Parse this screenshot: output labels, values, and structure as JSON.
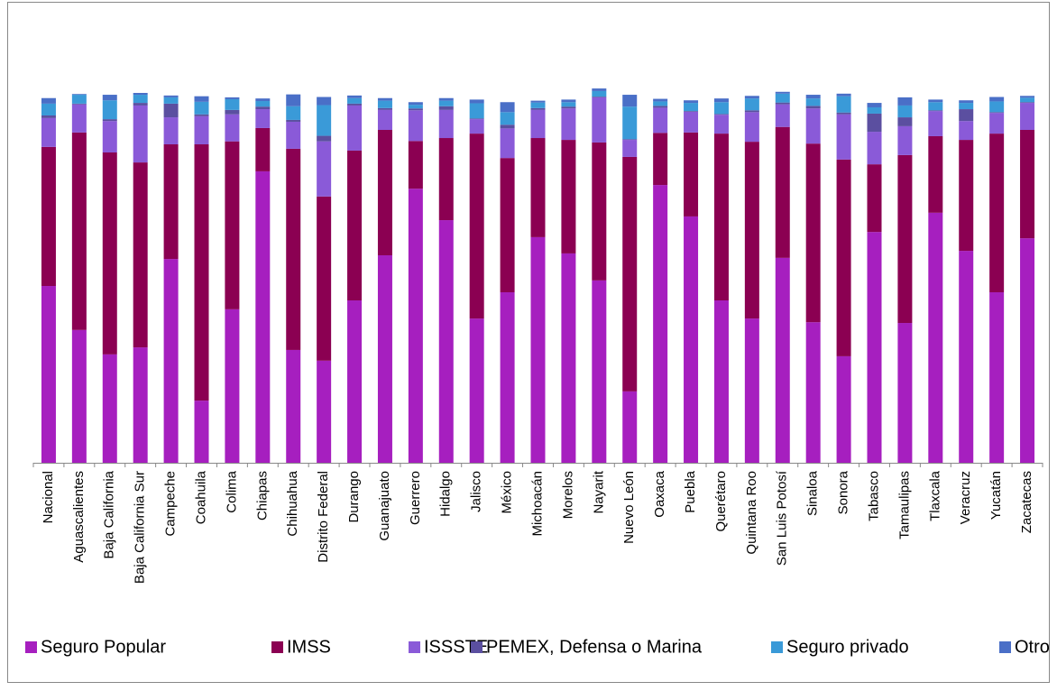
{
  "chart_data": {
    "type": "stacked_bar",
    "categories": [
      "Nacional",
      "Aguascalientes",
      "Baja California",
      "Baja California Sur",
      "Campeche",
      "Coahuila",
      "Colima",
      "Chiapas",
      "Chihuahua",
      "Distrito Federal",
      "Durango",
      "Guanajuato",
      "Guerrero",
      "Hidalgo",
      "Jalisco",
      "México",
      "Michoacán",
      "Morelos",
      "Nayarit",
      "Nuevo León",
      "Oaxaca",
      "Puebla",
      "Querétaro",
      "Quintana Roo",
      "San Luis Potosí",
      "Sinaloa",
      "Sonora",
      "Tabasco",
      "Tamaulipas",
      "Tlaxcala",
      "Veracruz",
      "Yucatán",
      "Zacatecas"
    ],
    "series": [
      {
        "name": "Seguro Popular",
        "color": "#a61fbf",
        "values": [
          47.8,
          35.9,
          29.3,
          31.2,
          55.1,
          16.8,
          41.5,
          78.8,
          30.5,
          27.6,
          43.9,
          56.1,
          74.1,
          65.6,
          39,
          46.1,
          61,
          56.6,
          49.3,
          19.3,
          75.1,
          66.6,
          43.9,
          39,
          55.4,
          38,
          28.8,
          62.4,
          37.8,
          67.6,
          57.3,
          46.1,
          60.7
        ]
      },
      {
        "name": "IMSS",
        "color": "#8b0052",
        "values": [
          37.6,
          53.4,
          54.6,
          50,
          31,
          69.3,
          45.4,
          11.7,
          54.4,
          44.4,
          40.5,
          33.9,
          12.9,
          22.2,
          50,
          36.3,
          26.8,
          30.7,
          37.3,
          63.4,
          14.1,
          22.7,
          45.1,
          47.8,
          35.4,
          48.3,
          53.2,
          18.3,
          45.4,
          20.7,
          30,
          42.9,
          29.3
        ]
      },
      {
        "name": "ISSSTE",
        "color": "#8a5ad8",
        "values": [
          7.8,
          7.6,
          8.5,
          15.4,
          7.3,
          7.6,
          7.3,
          5.1,
          7.3,
          14.9,
          12.2,
          5.4,
          8.3,
          7.6,
          3.9,
          8,
          7.6,
          8.5,
          12.2,
          4.6,
          6.8,
          5.6,
          5.1,
          8,
          6.1,
          9.5,
          12.2,
          8.8,
          7.8,
          6.8,
          5.1,
          5.6,
          7.3
        ]
      },
      {
        "name": "PEMEX, Defensa o Marina",
        "color": "#5b4fa0",
        "values": [
          0.7,
          0.2,
          0.5,
          0.7,
          3.7,
          0.5,
          1.2,
          0.7,
          0.5,
          1.5,
          0.5,
          0.5,
          0.5,
          1,
          0.2,
          1,
          0.5,
          0.5,
          0.2,
          0.2,
          0.5,
          0.2,
          0.2,
          0.5,
          0.5,
          0.7,
          0.5,
          4.9,
          2.4,
          0.2,
          3.2,
          0.2,
          0.2
        ]
      },
      {
        "name": "Seguro privado",
        "color": "#3a9ad8",
        "values": [
          3.2,
          2.4,
          5.1,
          2.2,
          1.7,
          3.4,
          2.9,
          1.5,
          3.7,
          8.3,
          1.5,
          2,
          1,
          1.5,
          4.1,
          3.4,
          1.5,
          1.2,
          1.5,
          8.8,
          1.2,
          2.2,
          3.2,
          3.2,
          2.4,
          2,
          4.4,
          1.7,
          3.2,
          2.2,
          1.7,
          2.9,
          1.2
        ]
      },
      {
        "name": "Otro",
        "color": "#4a6fc7",
        "values": [
          1.5,
          0.2,
          1.5,
          0.5,
          0.5,
          1.5,
          0.5,
          0.7,
          3.2,
          2.2,
          0.7,
          0.7,
          0.7,
          0.7,
          1,
          2.7,
          0.5,
          0.7,
          0.7,
          3.2,
          0.7,
          0.7,
          1,
          0.7,
          0.5,
          1,
          0.7,
          1.2,
          2.2,
          0.7,
          0.7,
          1.2,
          0.5
        ]
      }
    ],
    "ylim": [
      0,
      110
    ],
    "legend": "bottom"
  }
}
